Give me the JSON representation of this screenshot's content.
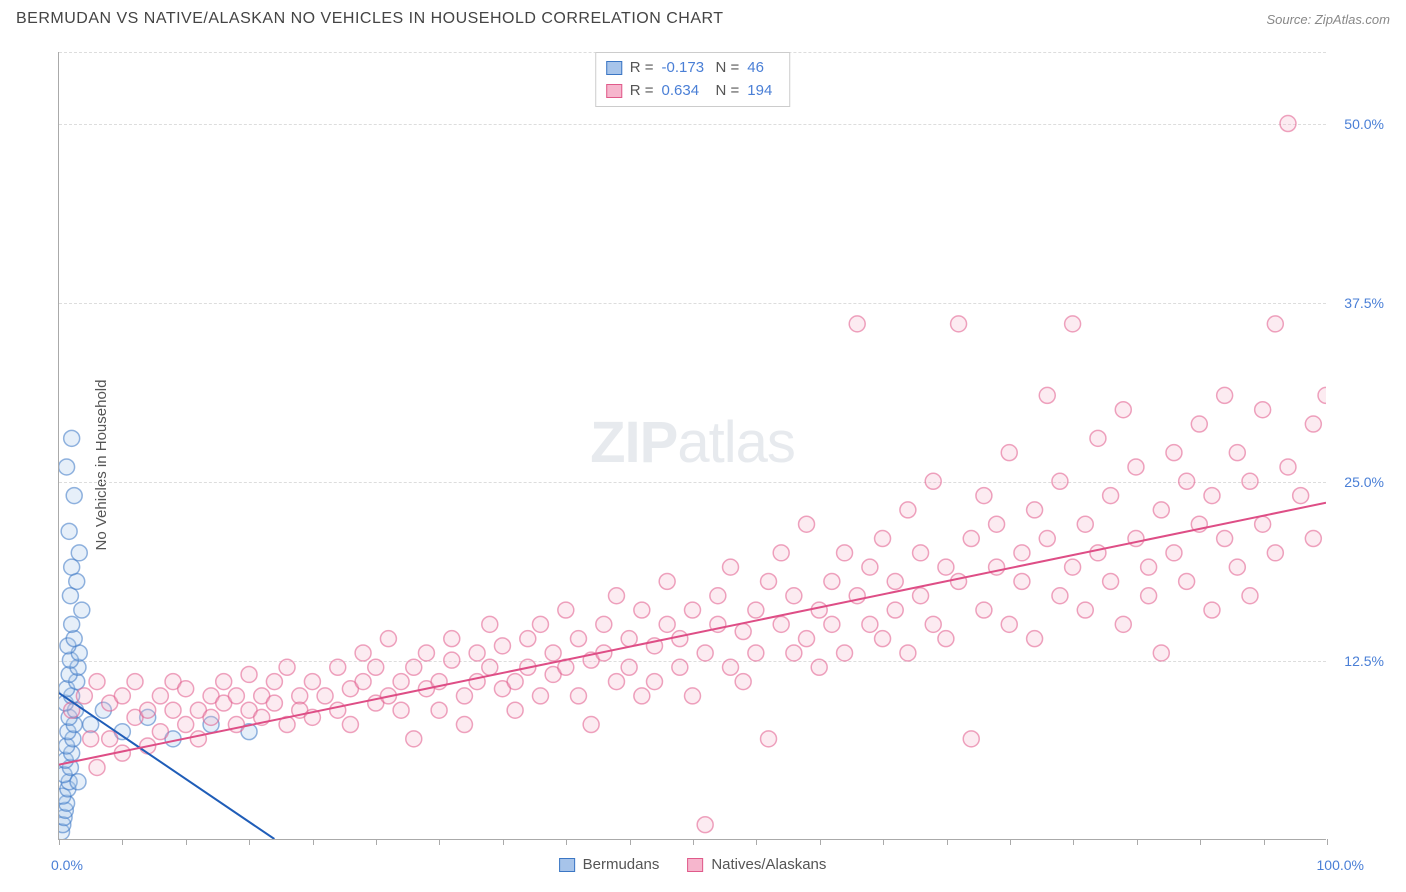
{
  "header": {
    "title": "BERMUDAN VS NATIVE/ALASKAN NO VEHICLES IN HOUSEHOLD CORRELATION CHART",
    "source_prefix": "Source: ",
    "source_name": "ZipAtlas.com"
  },
  "y_axis": {
    "label": "No Vehicles in Household"
  },
  "watermark": {
    "zip": "ZIP",
    "atlas": "atlas"
  },
  "chart": {
    "type": "scatter_with_regression",
    "xlim": [
      0,
      100
    ],
    "ylim": [
      0,
      55
    ],
    "background_color": "#ffffff",
    "grid_color": "#dddddd",
    "axis_color": "#aaaaaa",
    "tick_label_color": "#4a7fd6",
    "grid_y_values": [
      12.5,
      25,
      37.5,
      50,
      55
    ],
    "y_tick_labels": [
      {
        "v": 12.5,
        "t": "12.5%"
      },
      {
        "v": 25,
        "t": "25.0%"
      },
      {
        "v": 37.5,
        "t": "37.5%"
      },
      {
        "v": 50,
        "t": "50.0%"
      }
    ],
    "x_tick_values": [
      0,
      5,
      10,
      15,
      20,
      25,
      30,
      35,
      40,
      45,
      50,
      55,
      60,
      65,
      70,
      75,
      80,
      85,
      90,
      95,
      100
    ],
    "x_tick_labels": [
      {
        "v": 0,
        "t": "0.0%"
      },
      {
        "v": 100,
        "t": "100.0%"
      }
    ],
    "marker_radius": 8,
    "marker_stroke_width": 1.5,
    "marker_fill_opacity": 0.28,
    "regression_line_width": 2,
    "series": [
      {
        "id": "bermudans",
        "label": "Bermudans",
        "color_stroke": "#3b76c4",
        "color_fill": "#a7c4ea",
        "R_label": "R =",
        "R_value": "-0.173",
        "N_label": "N =",
        "N_value": "46",
        "regression": {
          "x1": 0,
          "y1": 10.2,
          "x2": 17,
          "y2": 0,
          "color": "#1f5db8"
        },
        "points": [
          [
            0.2,
            0.5
          ],
          [
            0.3,
            1
          ],
          [
            0.4,
            1.5
          ],
          [
            0.5,
            2
          ],
          [
            0.6,
            2.5
          ],
          [
            0.3,
            3
          ],
          [
            0.7,
            3.5
          ],
          [
            0.8,
            4
          ],
          [
            0.4,
            4.5
          ],
          [
            0.9,
            5
          ],
          [
            0.5,
            5.5
          ],
          [
            1,
            6
          ],
          [
            0.6,
            6.5
          ],
          [
            1.1,
            7
          ],
          [
            0.7,
            7.5
          ],
          [
            1.2,
            8
          ],
          [
            0.8,
            8.5
          ],
          [
            1.3,
            9
          ],
          [
            0.5,
            9.5
          ],
          [
            1,
            10
          ],
          [
            0.6,
            10.5
          ],
          [
            1.4,
            11
          ],
          [
            0.8,
            11.5
          ],
          [
            1.5,
            12
          ],
          [
            0.9,
            12.5
          ],
          [
            1.6,
            13
          ],
          [
            0.7,
            13.5
          ],
          [
            1.2,
            14
          ],
          [
            1,
            15
          ],
          [
            1.8,
            16
          ],
          [
            0.9,
            17
          ],
          [
            1.4,
            18
          ],
          [
            1,
            19
          ],
          [
            1.6,
            20
          ],
          [
            0.8,
            21.5
          ],
          [
            1.2,
            24
          ],
          [
            0.6,
            26
          ],
          [
            1,
            28
          ],
          [
            2.5,
            8
          ],
          [
            3.5,
            9
          ],
          [
            5,
            7.5
          ],
          [
            7,
            8.5
          ],
          [
            9,
            7
          ],
          [
            12,
            8
          ],
          [
            15,
            7.5
          ],
          [
            1.5,
            4
          ]
        ]
      },
      {
        "id": "natives_alaskans",
        "label": "Natives/Alaskans",
        "color_stroke": "#e05a8a",
        "color_fill": "#f6b6cd",
        "R_label": "R =",
        "R_value": "0.634",
        "N_label": "N =",
        "N_value": "194",
        "regression": {
          "x1": 0,
          "y1": 5.2,
          "x2": 100,
          "y2": 23.5,
          "color": "#de4e86"
        },
        "points": [
          [
            1,
            9
          ],
          [
            2,
            10
          ],
          [
            2.5,
            7
          ],
          [
            3,
            11
          ],
          [
            3,
            5
          ],
          [
            4,
            9.5
          ],
          [
            4,
            7
          ],
          [
            5,
            10
          ],
          [
            5,
            6
          ],
          [
            6,
            8.5
          ],
          [
            6,
            11
          ],
          [
            7,
            9
          ],
          [
            7,
            6.5
          ],
          [
            8,
            10
          ],
          [
            8,
            7.5
          ],
          [
            9,
            9
          ],
          [
            9,
            11
          ],
          [
            10,
            8
          ],
          [
            10,
            10.5
          ],
          [
            11,
            9
          ],
          [
            11,
            7
          ],
          [
            12,
            10
          ],
          [
            12,
            8.5
          ],
          [
            13,
            9.5
          ],
          [
            13,
            11
          ],
          [
            14,
            8
          ],
          [
            14,
            10
          ],
          [
            15,
            9
          ],
          [
            15,
            11.5
          ],
          [
            16,
            8.5
          ],
          [
            16,
            10
          ],
          [
            17,
            9.5
          ],
          [
            17,
            11
          ],
          [
            18,
            8
          ],
          [
            18,
            12
          ],
          [
            19,
            10
          ],
          [
            19,
            9
          ],
          [
            20,
            11
          ],
          [
            20,
            8.5
          ],
          [
            21,
            10
          ],
          [
            22,
            9
          ],
          [
            22,
            12
          ],
          [
            23,
            10.5
          ],
          [
            23,
            8
          ],
          [
            24,
            11
          ],
          [
            24,
            13
          ],
          [
            25,
            9.5
          ],
          [
            25,
            12
          ],
          [
            26,
            10
          ],
          [
            26,
            14
          ],
          [
            27,
            11
          ],
          [
            27,
            9
          ],
          [
            28,
            12
          ],
          [
            28,
            7
          ],
          [
            29,
            10.5
          ],
          [
            29,
            13
          ],
          [
            30,
            11
          ],
          [
            30,
            9
          ],
          [
            31,
            12.5
          ],
          [
            31,
            14
          ],
          [
            32,
            10
          ],
          [
            32,
            8
          ],
          [
            33,
            13
          ],
          [
            33,
            11
          ],
          [
            34,
            12
          ],
          [
            34,
            15
          ],
          [
            35,
            10.5
          ],
          [
            35,
            13.5
          ],
          [
            36,
            11
          ],
          [
            36,
            9
          ],
          [
            37,
            14
          ],
          [
            37,
            12
          ],
          [
            38,
            10
          ],
          [
            38,
            15
          ],
          [
            39,
            13
          ],
          [
            39,
            11.5
          ],
          [
            40,
            12
          ],
          [
            40,
            16
          ],
          [
            41,
            10
          ],
          [
            41,
            14
          ],
          [
            42,
            12.5
          ],
          [
            42,
            8
          ],
          [
            43,
            15
          ],
          [
            43,
            13
          ],
          [
            44,
            11
          ],
          [
            44,
            17
          ],
          [
            45,
            14
          ],
          [
            45,
            12
          ],
          [
            46,
            10
          ],
          [
            46,
            16
          ],
          [
            47,
            13.5
          ],
          [
            47,
            11
          ],
          [
            48,
            15
          ],
          [
            48,
            18
          ],
          [
            49,
            12
          ],
          [
            49,
            14
          ],
          [
            50,
            16
          ],
          [
            50,
            10
          ],
          [
            51,
            13
          ],
          [
            51,
            1
          ],
          [
            52,
            15
          ],
          [
            52,
            17
          ],
          [
            53,
            12
          ],
          [
            53,
            19
          ],
          [
            54,
            14.5
          ],
          [
            54,
            11
          ],
          [
            55,
            16
          ],
          [
            55,
            13
          ],
          [
            56,
            18
          ],
          [
            56,
            7
          ],
          [
            57,
            15
          ],
          [
            57,
            20
          ],
          [
            58,
            13
          ],
          [
            58,
            17
          ],
          [
            59,
            14
          ],
          [
            59,
            22
          ],
          [
            60,
            16
          ],
          [
            60,
            12
          ],
          [
            61,
            18
          ],
          [
            61,
            15
          ],
          [
            62,
            13
          ],
          [
            62,
            20
          ],
          [
            63,
            17
          ],
          [
            63,
            36
          ],
          [
            64,
            15
          ],
          [
            64,
            19
          ],
          [
            65,
            14
          ],
          [
            65,
            21
          ],
          [
            66,
            18
          ],
          [
            66,
            16
          ],
          [
            67,
            13
          ],
          [
            67,
            23
          ],
          [
            68,
            17
          ],
          [
            68,
            20
          ],
          [
            69,
            15
          ],
          [
            69,
            25
          ],
          [
            70,
            19
          ],
          [
            70,
            14
          ],
          [
            71,
            36
          ],
          [
            71,
            18
          ],
          [
            72,
            21
          ],
          [
            72,
            7
          ],
          [
            73,
            16
          ],
          [
            73,
            24
          ],
          [
            74,
            19
          ],
          [
            74,
            22
          ],
          [
            75,
            15
          ],
          [
            75,
            27
          ],
          [
            76,
            20
          ],
          [
            76,
            18
          ],
          [
            77,
            23
          ],
          [
            77,
            14
          ],
          [
            78,
            21
          ],
          [
            78,
            31
          ],
          [
            79,
            17
          ],
          [
            79,
            25
          ],
          [
            80,
            36
          ],
          [
            80,
            19
          ],
          [
            81,
            22
          ],
          [
            81,
            16
          ],
          [
            82,
            28
          ],
          [
            82,
            20
          ],
          [
            83,
            18
          ],
          [
            83,
            24
          ],
          [
            84,
            15
          ],
          [
            84,
            30
          ],
          [
            85,
            21
          ],
          [
            85,
            26
          ],
          [
            86,
            19
          ],
          [
            86,
            17
          ],
          [
            87,
            23
          ],
          [
            87,
            13
          ],
          [
            88,
            27
          ],
          [
            88,
            20
          ],
          [
            89,
            25
          ],
          [
            89,
            18
          ],
          [
            90,
            22
          ],
          [
            90,
            29
          ],
          [
            91,
            16
          ],
          [
            91,
            24
          ],
          [
            92,
            21
          ],
          [
            92,
            31
          ],
          [
            93,
            19
          ],
          [
            93,
            27
          ],
          [
            94,
            25
          ],
          [
            94,
            17
          ],
          [
            95,
            30
          ],
          [
            95,
            22
          ],
          [
            96,
            20
          ],
          [
            96,
            36
          ],
          [
            97,
            50
          ],
          [
            97,
            26
          ],
          [
            98,
            24
          ],
          [
            99,
            29
          ],
          [
            99,
            21
          ],
          [
            100,
            31
          ]
        ]
      }
    ]
  },
  "legend": {
    "items": [
      {
        "series": "bermudans",
        "label": "Bermudans"
      },
      {
        "series": "natives_alaskans",
        "label": "Natives/Alaskans"
      }
    ]
  }
}
